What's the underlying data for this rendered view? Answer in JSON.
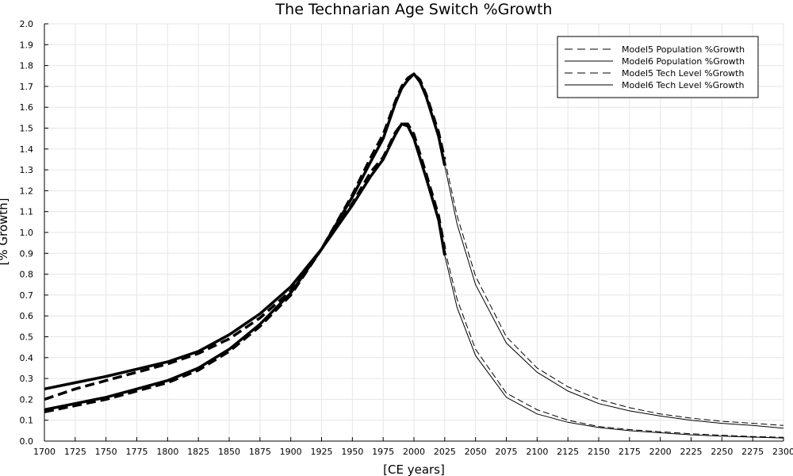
{
  "chart_data": {
    "type": "line",
    "title": "The Technarian Age Switch %Growth",
    "xlabel": "[CE years]",
    "ylabel": "[% Growth]",
    "xlim": [
      1700,
      2300
    ],
    "ylim": [
      0,
      2.0
    ],
    "x_ticks": [
      1700,
      1725,
      1750,
      1775,
      1800,
      1825,
      1850,
      1875,
      1900,
      1925,
      1950,
      1975,
      2000,
      2025,
      2050,
      2075,
      2100,
      2125,
      2150,
      2175,
      2200,
      2225,
      2250,
      2275,
      2300
    ],
    "y_ticks": [
      "0.0",
      "0.1",
      "0.2",
      "0.3",
      "0.4",
      "0.5",
      "0.6",
      "0.7",
      "0.8",
      "0.9",
      "1.0",
      "1.1",
      "1.2",
      "1.3",
      "1.4",
      "1.5",
      "1.6",
      "1.7",
      "1.8",
      "1.9",
      "2.0"
    ],
    "grid": true,
    "legend_position": "top-right",
    "series": [
      {
        "name": "Model5 Population %Growth",
        "dash": "dashed",
        "x": [
          1700,
          1725,
          1750,
          1775,
          1800,
          1825,
          1850,
          1875,
          1900,
          1925,
          1950,
          1965,
          1975,
          1985,
          1990,
          1995,
          2000,
          2005,
          2010,
          2020,
          2025,
          2035,
          2050,
          2075,
          2100,
          2125,
          2150,
          2175,
          2200,
          2225,
          2250,
          2275,
          2300
        ],
        "y": [
          0.2,
          0.25,
          0.29,
          0.33,
          0.37,
          0.42,
          0.49,
          0.59,
          0.72,
          0.92,
          1.18,
          1.36,
          1.47,
          1.63,
          1.7,
          1.74,
          1.76,
          1.73,
          1.66,
          1.48,
          1.35,
          1.08,
          0.79,
          0.5,
          0.35,
          0.26,
          0.2,
          0.16,
          0.13,
          0.11,
          0.095,
          0.085,
          0.075
        ]
      },
      {
        "name": "Model6 Population %Growth",
        "dash": "solid",
        "x": [
          1700,
          1725,
          1750,
          1775,
          1800,
          1825,
          1850,
          1875,
          1900,
          1925,
          1950,
          1965,
          1975,
          1985,
          1990,
          1995,
          2000,
          2005,
          2010,
          2020,
          2025,
          2035,
          2050,
          2075,
          2100,
          2125,
          2150,
          2175,
          2200,
          2225,
          2250,
          2275,
          2300
        ],
        "y": [
          0.25,
          0.28,
          0.31,
          0.345,
          0.38,
          0.43,
          0.51,
          0.61,
          0.74,
          0.92,
          1.17,
          1.34,
          1.45,
          1.62,
          1.69,
          1.73,
          1.76,
          1.72,
          1.65,
          1.46,
          1.32,
          1.04,
          0.75,
          0.47,
          0.33,
          0.24,
          0.18,
          0.145,
          0.12,
          0.1,
          0.085,
          0.075,
          0.062
        ]
      },
      {
        "name": "Model5 Tech Level %Growth",
        "dash": "dashed",
        "x": [
          1700,
          1725,
          1750,
          1775,
          1800,
          1825,
          1850,
          1875,
          1900,
          1925,
          1950,
          1965,
          1975,
          1985,
          1990,
          1995,
          2000,
          2010,
          2020,
          2025,
          2035,
          2050,
          2075,
          2100,
          2125,
          2150,
          2175,
          2200,
          2225,
          2250,
          2275,
          2300
        ],
        "y": [
          0.14,
          0.17,
          0.2,
          0.24,
          0.28,
          0.34,
          0.43,
          0.55,
          0.7,
          0.92,
          1.14,
          1.29,
          1.36,
          1.48,
          1.52,
          1.52,
          1.47,
          1.28,
          1.08,
          0.92,
          0.68,
          0.44,
          0.23,
          0.15,
          0.1,
          0.07,
          0.055,
          0.045,
          0.035,
          0.028,
          0.022,
          0.018
        ]
      },
      {
        "name": "Model6 Tech Level %Growth",
        "dash": "solid",
        "x": [
          1700,
          1725,
          1750,
          1775,
          1800,
          1825,
          1850,
          1875,
          1900,
          1925,
          1950,
          1965,
          1975,
          1985,
          1990,
          1995,
          2000,
          2010,
          2020,
          2025,
          2035,
          2050,
          2075,
          2100,
          2125,
          2150,
          2175,
          2200,
          2225,
          2250,
          2275,
          2300
        ],
        "y": [
          0.15,
          0.18,
          0.21,
          0.25,
          0.29,
          0.35,
          0.44,
          0.56,
          0.71,
          0.92,
          1.13,
          1.27,
          1.35,
          1.47,
          1.52,
          1.51,
          1.45,
          1.26,
          1.06,
          0.89,
          0.64,
          0.41,
          0.21,
          0.13,
          0.09,
          0.065,
          0.05,
          0.04,
          0.03,
          0.024,
          0.019,
          0.015
        ]
      }
    ]
  }
}
